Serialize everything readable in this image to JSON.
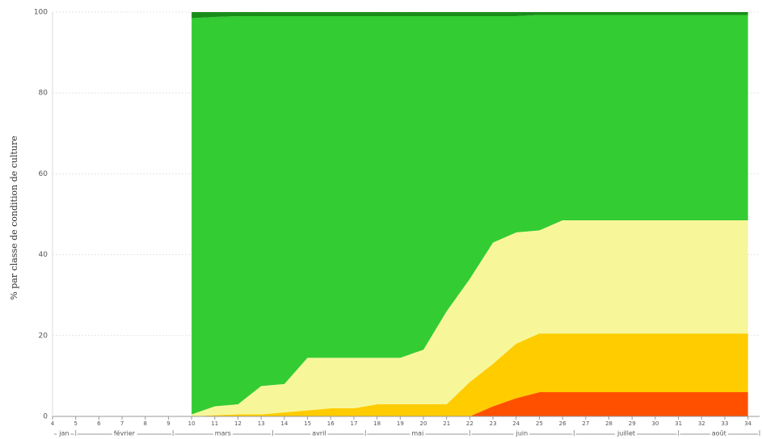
{
  "chart_data": {
    "type": "stacked_area",
    "y_label": "% par classe de condition de culture",
    "x": [
      10,
      11,
      12,
      13,
      14,
      15,
      16,
      17,
      18,
      19,
      20,
      21,
      22,
      23,
      24,
      25,
      26,
      27,
      28,
      29,
      30,
      31,
      32,
      33,
      34
    ],
    "series": [
      {
        "color": "#ff5000",
        "values": [
          0,
          0,
          0,
          0,
          0,
          0,
          0,
          0,
          0,
          0,
          0,
          0,
          0,
          2.5,
          4.5,
          6,
          6,
          6,
          6,
          6,
          6,
          6,
          6,
          6,
          6
        ]
      },
      {
        "color": "#ffcc00",
        "values": [
          0,
          0.3,
          0.5,
          0.5,
          1,
          1.5,
          2,
          2,
          3,
          3,
          3,
          3,
          8.5,
          10.5,
          13.5,
          14.5,
          14.5,
          14.5,
          14.5,
          14.5,
          14.5,
          14.5,
          14.5,
          14.5,
          14.5
        ]
      },
      {
        "color": "#f7f79a",
        "values": [
          0.5,
          2.2,
          2.5,
          7,
          7,
          13,
          12.5,
          12.5,
          11.5,
          11.5,
          13.5,
          23,
          25.5,
          30,
          27.5,
          25.5,
          28,
          28,
          28,
          28,
          28,
          28,
          28,
          28,
          28
        ]
      },
      {
        "color": "#33cc33",
        "values": [
          98,
          96.3,
          96,
          91.5,
          91,
          84.5,
          84.5,
          84.5,
          84.5,
          84.5,
          82.5,
          73,
          65,
          56,
          53.5,
          53.3,
          50.8,
          50.8,
          50.8,
          50.8,
          50.8,
          50.8,
          50.8,
          50.8,
          50.8
        ]
      },
      {
        "color": "#1a8c1a",
        "values": [
          1.5,
          1.2,
          1,
          1,
          1,
          1,
          1,
          1,
          1,
          1,
          1,
          1,
          1,
          1,
          1,
          0.7,
          0.7,
          0.7,
          0.7,
          0.7,
          0.7,
          0.7,
          0.7,
          0.7,
          0.7
        ]
      }
    ],
    "xlim": [
      4,
      34.5
    ],
    "xticks": [
      4,
      5,
      6,
      7,
      8,
      9,
      10,
      11,
      12,
      13,
      14,
      15,
      16,
      17,
      18,
      19,
      20,
      21,
      22,
      23,
      24,
      25,
      26,
      27,
      28,
      29,
      30,
      31,
      32,
      33,
      34
    ],
    "ylim": [
      0,
      100
    ],
    "yticks": [
      0,
      20,
      40,
      60,
      80,
      100
    ],
    "grid": true,
    "months": [
      {
        "label": "jan",
        "start": 4,
        "end": 5
      },
      {
        "label": "février",
        "start": 5,
        "end": 9.2
      },
      {
        "label": "mars",
        "start": 9.2,
        "end": 13.5
      },
      {
        "label": "avril",
        "start": 13.5,
        "end": 17.5
      },
      {
        "label": "mai",
        "start": 17.5,
        "end": 22
      },
      {
        "label": "juin",
        "start": 22,
        "end": 26.5
      },
      {
        "label": "juillet",
        "start": 26.5,
        "end": 31
      },
      {
        "label": "août",
        "start": 31,
        "end": 35
      }
    ]
  }
}
